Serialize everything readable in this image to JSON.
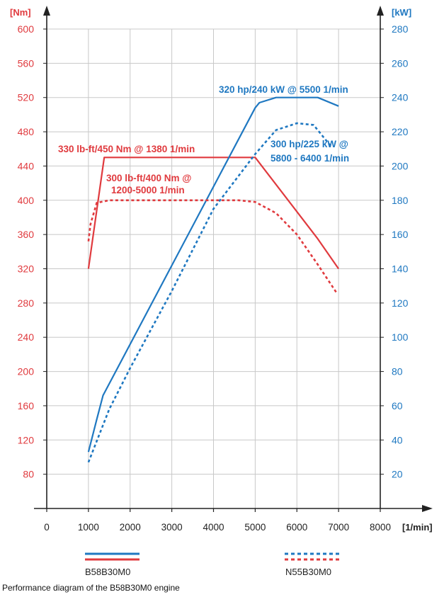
{
  "colors": {
    "torque": "#e03a3e",
    "power": "#1f78c1",
    "axis": "#222222",
    "grid": "#c8c8c8"
  },
  "chart_data": {
    "type": "line",
    "x_unit_label": "[1/min]",
    "left_unit_label": "[Nm]",
    "right_unit_label": "[kW]",
    "xlim": [
      0,
      8000
    ],
    "x_ticks": [
      0,
      1000,
      2000,
      3000,
      4000,
      5000,
      6000,
      7000,
      8000
    ],
    "y_left_lim": [
      40,
      600
    ],
    "y_left_ticks": [
      80,
      120,
      160,
      200,
      240,
      280,
      320,
      360,
      400,
      440,
      480,
      520,
      560,
      600
    ],
    "y_right_lim": [
      0,
      280
    ],
    "y_right_ticks": [
      20,
      40,
      60,
      80,
      100,
      120,
      140,
      160,
      180,
      200,
      220,
      240,
      260,
      280
    ],
    "grid": true,
    "series": [
      {
        "name": "B58B30M0",
        "quantity": "torque",
        "axis": "left",
        "style": "solid",
        "x": [
          1000,
          1380,
          5000,
          6500,
          7000
        ],
        "y": [
          320,
          450,
          450,
          355,
          320
        ]
      },
      {
        "name": "B58B30M0",
        "quantity": "power",
        "axis": "right",
        "style": "solid",
        "x": [
          1000,
          1200,
          1350,
          5000,
          5100,
          5500,
          6500,
          7000
        ],
        "y": [
          33,
          52,
          66,
          234,
          237,
          240,
          240,
          235
        ]
      },
      {
        "name": "N55B30M0",
        "quantity": "torque",
        "axis": "left",
        "style": "dashed",
        "x": [
          1000,
          1050,
          1200,
          1500,
          2000,
          3000,
          4000,
          4600,
          5000,
          5500,
          6000,
          6500,
          6950
        ],
        "y": [
          352,
          372,
          397,
          400,
          400,
          400,
          400,
          400,
          398,
          385,
          360,
          325,
          292
        ]
      },
      {
        "name": "N55B30M0",
        "quantity": "power",
        "axis": "right",
        "style": "dashed",
        "x": [
          1000,
          1500,
          2000,
          3000,
          4000,
          5000,
          5500,
          6000,
          6400,
          6800
        ],
        "y": [
          27,
          58,
          82,
          127,
          175,
          207,
          221,
          225,
          224,
          212
        ]
      }
    ],
    "annotations": [
      {
        "text": "330 lb-ft/450 Nm @ 1380 1/min",
        "color": "torque"
      },
      {
        "text": "300 lb-ft/400 Nm @",
        "color": "torque"
      },
      {
        "text": "1200-5000 1/min",
        "color": "torque"
      },
      {
        "text": "320 hp/240 kW @ 5500 1/min",
        "color": "power"
      },
      {
        "text": "300 hp/225 kW @",
        "color": "power"
      },
      {
        "text": "5800 - 6400 1/min",
        "color": "power"
      }
    ],
    "legend": [
      {
        "label": "B58B30M0",
        "style": "solid"
      },
      {
        "label": "N55B30M0",
        "style": "dashed"
      }
    ],
    "caption": "Performance diagram of the B58B30M0 engine"
  }
}
